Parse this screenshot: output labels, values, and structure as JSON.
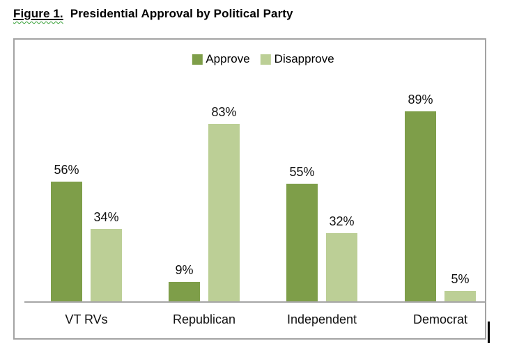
{
  "document": {
    "figure_label": "Figure 1.",
    "figure_title": "Presidential Approval by Political Party",
    "squiggle_color": "#35A035"
  },
  "chart_data": {
    "type": "bar",
    "title": "Figure 1. Presidential Approval by Political Party",
    "categories": [
      "VT RVs",
      "Republican",
      "Independent",
      "Democrat"
    ],
    "series": [
      {
        "name": "Approve",
        "color": "#7E9E49",
        "values": [
          56,
          9,
          55,
          89
        ]
      },
      {
        "name": "Disapprove",
        "color": "#BCCF96",
        "values": [
          34,
          83,
          32,
          5
        ]
      }
    ],
    "value_suffix": "%",
    "xlabel": "",
    "ylabel": "",
    "ylim": [
      0,
      100
    ],
    "grid": false,
    "legend_position": "top-center",
    "axis_color": "#A6A6A6",
    "data_labels": true
  }
}
